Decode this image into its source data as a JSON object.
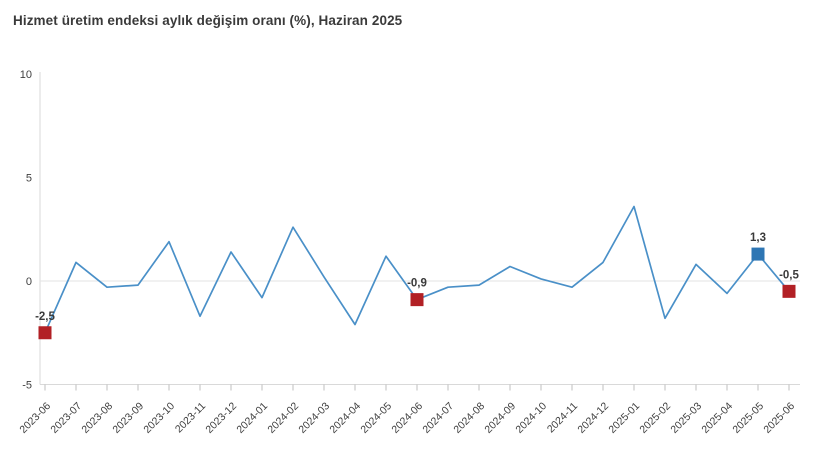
{
  "title": "Hizmet üretim endeksi aylık değişim oranı (%), Haziran 2025",
  "chart_data": {
    "type": "line",
    "title": "Hizmet üretim endeksi aylık değişim oranı (%), Haziran 2025",
    "xlabel": "",
    "ylabel": "",
    "ylim": [
      -5,
      10
    ],
    "yticks": [
      10,
      5,
      0,
      -5
    ],
    "legend": "none",
    "grid": "horizontal line at 0 and bottom axis only",
    "line_color": "#4a90c8",
    "x": [
      "2023-06",
      "2023-07",
      "2023-08",
      "2023-09",
      "2023-10",
      "2023-11",
      "2023-12",
      "2024-01",
      "2024-02",
      "2024-03",
      "2024-04",
      "2024-05",
      "2024-06",
      "2024-07",
      "2024-08",
      "2024-09",
      "2024-10",
      "2024-11",
      "2024-12",
      "2025-01",
      "2025-02",
      "2025-03",
      "2025-04",
      "2025-05",
      "2025-06"
    ],
    "values": [
      -2.5,
      0.9,
      -0.3,
      -0.2,
      1.9,
      -1.7,
      1.4,
      -0.8,
      2.6,
      0.2,
      -2.1,
      1.2,
      -0.9,
      -0.3,
      -0.2,
      0.7,
      0.1,
      -0.3,
      0.9,
      3.6,
      -1.8,
      0.8,
      -0.6,
      1.3,
      -0.5
    ],
    "annotations": [
      {
        "x": "2023-06",
        "value": -2.5,
        "label": "-2,5",
        "marker_color": "#b22025"
      },
      {
        "x": "2024-06",
        "value": -0.9,
        "label": "-0,9",
        "marker_color": "#b22025"
      },
      {
        "x": "2025-05",
        "value": 1.3,
        "label": "1,3",
        "marker_color": "#2e76b4"
      },
      {
        "x": "2025-06",
        "value": -0.5,
        "label": "-0,5",
        "marker_color": "#b22025"
      }
    ]
  }
}
